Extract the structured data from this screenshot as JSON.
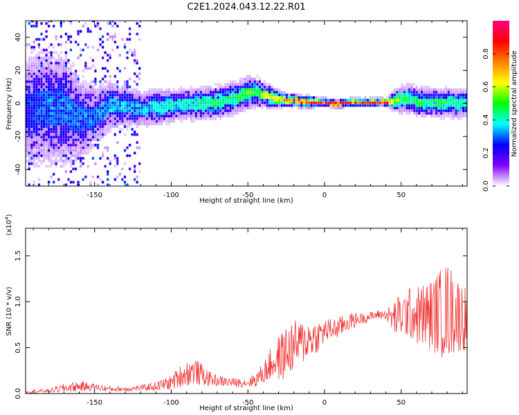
{
  "title": "C2E1.2024.043.12.22.R01",
  "chart_data": [
    {
      "type": "heatmap",
      "xlabel": "Height of straight line (km)",
      "ylabel": "Frequency (Hz)",
      "xlim": [
        -195,
        93
      ],
      "ylim": [
        -50,
        50
      ],
      "xticks": [
        -150,
        -100,
        -50,
        0,
        50
      ],
      "yticks": [
        -40,
        -20,
        0,
        20,
        40
      ],
      "colorbar": {
        "label": "Normalized spectral amplitude",
        "range": [
          0.0,
          1.0
        ],
        "ticks": [
          0.0,
          0.2,
          0.4,
          0.6,
          0.8
        ],
        "colors": [
          "#ffffff",
          "#7f00ff",
          "#0000ff",
          "#00ffff",
          "#00ff00",
          "#ffff00",
          "#ff7f00",
          "#ff0000",
          "#ff007f"
        ]
      },
      "ridge": {
        "x": [
          -195,
          -180,
          -170,
          -160,
          -150,
          -140,
          -130,
          -120,
          -110,
          -100,
          -90,
          -80,
          -70,
          -60,
          -50,
          -45,
          -40,
          -35,
          -30,
          -25,
          -20,
          -15,
          -10,
          -5,
          0,
          5,
          10,
          15,
          20,
          25,
          30,
          35,
          40,
          45,
          50,
          55,
          60,
          65,
          70,
          75,
          80,
          85,
          93
        ],
        "frequency": [
          -5,
          -3,
          -4,
          -10,
          -8,
          -2,
          -3,
          -4,
          -3,
          -2,
          -1,
          -1,
          0,
          2,
          6,
          6,
          4,
          3,
          2,
          1,
          1,
          0,
          0,
          0,
          0,
          -1,
          -1,
          0,
          0,
          0,
          0,
          0,
          0,
          1,
          2,
          2,
          0,
          0,
          0,
          -1,
          0,
          -1,
          0
        ],
        "amplitude": [
          0.25,
          0.3,
          0.3,
          0.3,
          0.3,
          0.35,
          0.35,
          0.35,
          0.4,
          0.4,
          0.4,
          0.45,
          0.45,
          0.45,
          0.5,
          0.5,
          0.6,
          0.65,
          0.7,
          0.75,
          0.8,
          0.8,
          0.85,
          0.9,
          0.9,
          0.9,
          0.9,
          0.85,
          0.85,
          0.85,
          0.9,
          0.9,
          0.85,
          0.6,
          0.45,
          0.45,
          0.5,
          0.45,
          0.45,
          0.45,
          0.45,
          0.45,
          0.4
        ],
        "spread_hz": [
          30,
          30,
          28,
          22,
          15,
          12,
          10,
          9,
          9,
          8,
          8,
          8,
          8,
          8,
          8,
          7,
          6,
          5,
          4,
          3,
          3,
          3,
          3,
          2,
          2,
          2,
          2,
          2,
          2,
          2,
          2,
          2,
          2,
          5,
          7,
          7,
          7,
          7,
          7,
          7,
          7,
          7,
          7
        ]
      }
    },
    {
      "type": "line",
      "xlabel": "Height of straight line (km)",
      "ylabel": "SNR (10 * v/v)",
      "ylabel_multiplier": "(x10",
      "ylabel_multiplier_exp": "4",
      "ylabel_multiplier_close": ")",
      "xlim": [
        -195,
        93
      ],
      "ylim": [
        0,
        1.8
      ],
      "xticks": [
        -150,
        -100,
        -50,
        0,
        50
      ],
      "yticks": [
        0.0,
        0.5,
        1.0,
        1.5
      ],
      "ytick_labels": [
        "0.0",
        "0.5",
        "1.0",
        "1.5"
      ],
      "series": [
        {
          "color": "#f03232",
          "x": [
            -195,
            -180,
            -170,
            -160,
            -150,
            -140,
            -130,
            -120,
            -110,
            -100,
            -95,
            -90,
            -85,
            -80,
            -75,
            -70,
            -60,
            -50,
            -45,
            -40,
            -35,
            -30,
            -25,
            -20,
            -15,
            -10,
            -5,
            0,
            5,
            10,
            15,
            20,
            25,
            30,
            35,
            40,
            45,
            50,
            55,
            60,
            65,
            70,
            75,
            80,
            85,
            93
          ],
          "y": [
            0.02,
            0.03,
            0.06,
            0.08,
            0.07,
            0.05,
            0.05,
            0.06,
            0.08,
            0.12,
            0.18,
            0.22,
            0.25,
            0.2,
            0.16,
            0.14,
            0.12,
            0.12,
            0.15,
            0.22,
            0.32,
            0.38,
            0.45,
            0.52,
            0.55,
            0.6,
            0.62,
            0.68,
            0.7,
            0.72,
            0.78,
            0.8,
            0.82,
            0.84,
            0.86,
            0.86,
            0.82,
            0.85,
            0.88,
            0.85,
            0.85,
            0.86,
            0.88,
            0.9,
            0.88,
            0.82
          ],
          "noise": [
            0.02,
            0.02,
            0.05,
            0.06,
            0.04,
            0.03,
            0.03,
            0.03,
            0.05,
            0.08,
            0.12,
            0.14,
            0.15,
            0.12,
            0.08,
            0.06,
            0.05,
            0.05,
            0.08,
            0.12,
            0.18,
            0.25,
            0.3,
            0.28,
            0.25,
            0.22,
            0.18,
            0.14,
            0.12,
            0.12,
            0.1,
            0.08,
            0.06,
            0.05,
            0.05,
            0.05,
            0.2,
            0.25,
            0.28,
            0.32,
            0.38,
            0.4,
            0.48,
            0.55,
            0.45,
            0.35
          ]
        }
      ]
    }
  ]
}
